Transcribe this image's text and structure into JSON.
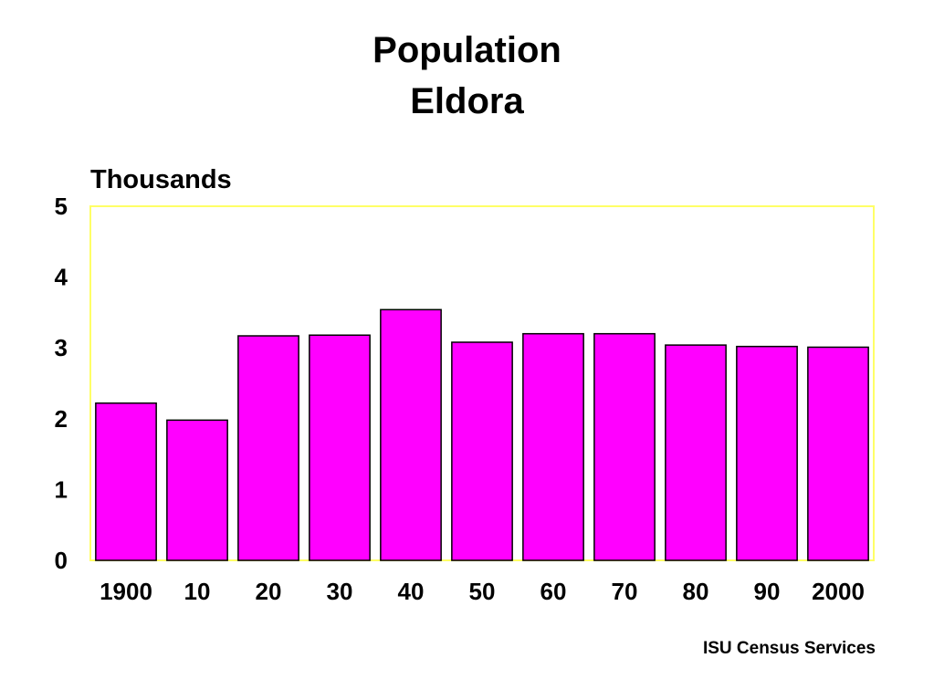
{
  "chart_data": {
    "type": "bar",
    "title": [
      "Population",
      "Eldora"
    ],
    "ylabel": "Thousands",
    "xlabel": "",
    "categories": [
      "1900",
      "10",
      "20",
      "30",
      "40",
      "50",
      "60",
      "70",
      "80",
      "90",
      "2000"
    ],
    "values": [
      2.22,
      1.98,
      3.17,
      3.18,
      3.54,
      3.08,
      3.2,
      3.2,
      3.04,
      3.02,
      3.01
    ],
    "ylim": [
      0,
      5
    ],
    "yticks": [
      "0",
      "1",
      "2",
      "3",
      "4",
      "5"
    ],
    "grid": false,
    "legend": "none",
    "colors": {
      "bar_fill": "#ff00ff",
      "bar_stroke": "#000000",
      "plot_border": "#ffff66"
    }
  },
  "footer": {
    "source": "ISU Census Services"
  }
}
